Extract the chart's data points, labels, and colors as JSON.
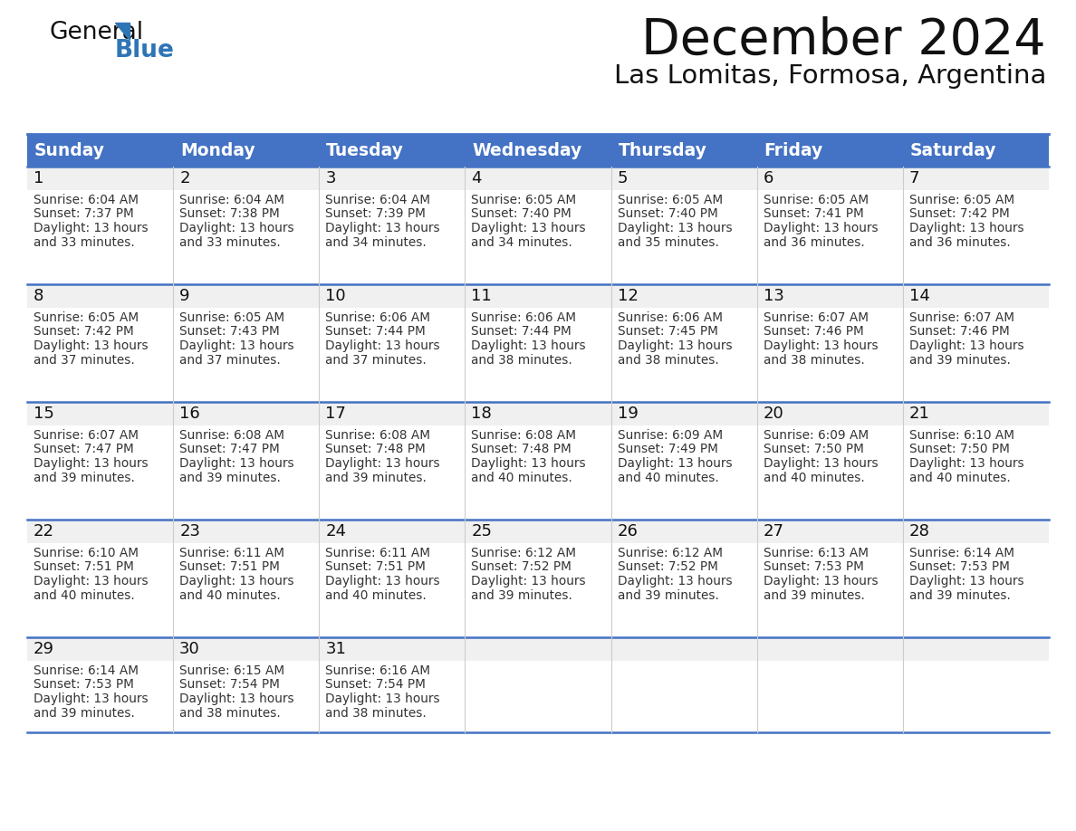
{
  "title": "December 2024",
  "subtitle": "Las Lomitas, Formosa, Argentina",
  "header_color": "#4472C4",
  "header_text_color": "#FFFFFF",
  "days_of_week": [
    "Sunday",
    "Monday",
    "Tuesday",
    "Wednesday",
    "Thursday",
    "Friday",
    "Saturday"
  ],
  "bg_color": "#FFFFFF",
  "border_color": "#4472C4",
  "day_num_bg": "#EFEFEF",
  "text_color": "#333333",
  "calendar_data": [
    [
      {
        "day": 1,
        "sunrise": "6:04 AM",
        "sunset": "7:37 PM",
        "daylight_hours": 13,
        "daylight_minutes": 33
      },
      {
        "day": 2,
        "sunrise": "6:04 AM",
        "sunset": "7:38 PM",
        "daylight_hours": 13,
        "daylight_minutes": 33
      },
      {
        "day": 3,
        "sunrise": "6:04 AM",
        "sunset": "7:39 PM",
        "daylight_hours": 13,
        "daylight_minutes": 34
      },
      {
        "day": 4,
        "sunrise": "6:05 AM",
        "sunset": "7:40 PM",
        "daylight_hours": 13,
        "daylight_minutes": 34
      },
      {
        "day": 5,
        "sunrise": "6:05 AM",
        "sunset": "7:40 PM",
        "daylight_hours": 13,
        "daylight_minutes": 35
      },
      {
        "day": 6,
        "sunrise": "6:05 AM",
        "sunset": "7:41 PM",
        "daylight_hours": 13,
        "daylight_minutes": 36
      },
      {
        "day": 7,
        "sunrise": "6:05 AM",
        "sunset": "7:42 PM",
        "daylight_hours": 13,
        "daylight_minutes": 36
      }
    ],
    [
      {
        "day": 8,
        "sunrise": "6:05 AM",
        "sunset": "7:42 PM",
        "daylight_hours": 13,
        "daylight_minutes": 37
      },
      {
        "day": 9,
        "sunrise": "6:05 AM",
        "sunset": "7:43 PM",
        "daylight_hours": 13,
        "daylight_minutes": 37
      },
      {
        "day": 10,
        "sunrise": "6:06 AM",
        "sunset": "7:44 PM",
        "daylight_hours": 13,
        "daylight_minutes": 37
      },
      {
        "day": 11,
        "sunrise": "6:06 AM",
        "sunset": "7:44 PM",
        "daylight_hours": 13,
        "daylight_minutes": 38
      },
      {
        "day": 12,
        "sunrise": "6:06 AM",
        "sunset": "7:45 PM",
        "daylight_hours": 13,
        "daylight_minutes": 38
      },
      {
        "day": 13,
        "sunrise": "6:07 AM",
        "sunset": "7:46 PM",
        "daylight_hours": 13,
        "daylight_minutes": 38
      },
      {
        "day": 14,
        "sunrise": "6:07 AM",
        "sunset": "7:46 PM",
        "daylight_hours": 13,
        "daylight_minutes": 39
      }
    ],
    [
      {
        "day": 15,
        "sunrise": "6:07 AM",
        "sunset": "7:47 PM",
        "daylight_hours": 13,
        "daylight_minutes": 39
      },
      {
        "day": 16,
        "sunrise": "6:08 AM",
        "sunset": "7:47 PM",
        "daylight_hours": 13,
        "daylight_minutes": 39
      },
      {
        "day": 17,
        "sunrise": "6:08 AM",
        "sunset": "7:48 PM",
        "daylight_hours": 13,
        "daylight_minutes": 39
      },
      {
        "day": 18,
        "sunrise": "6:08 AM",
        "sunset": "7:48 PM",
        "daylight_hours": 13,
        "daylight_minutes": 40
      },
      {
        "day": 19,
        "sunrise": "6:09 AM",
        "sunset": "7:49 PM",
        "daylight_hours": 13,
        "daylight_minutes": 40
      },
      {
        "day": 20,
        "sunrise": "6:09 AM",
        "sunset": "7:50 PM",
        "daylight_hours": 13,
        "daylight_minutes": 40
      },
      {
        "day": 21,
        "sunrise": "6:10 AM",
        "sunset": "7:50 PM",
        "daylight_hours": 13,
        "daylight_minutes": 40
      }
    ],
    [
      {
        "day": 22,
        "sunrise": "6:10 AM",
        "sunset": "7:51 PM",
        "daylight_hours": 13,
        "daylight_minutes": 40
      },
      {
        "day": 23,
        "sunrise": "6:11 AM",
        "sunset": "7:51 PM",
        "daylight_hours": 13,
        "daylight_minutes": 40
      },
      {
        "day": 24,
        "sunrise": "6:11 AM",
        "sunset": "7:51 PM",
        "daylight_hours": 13,
        "daylight_minutes": 40
      },
      {
        "day": 25,
        "sunrise": "6:12 AM",
        "sunset": "7:52 PM",
        "daylight_hours": 13,
        "daylight_minutes": 39
      },
      {
        "day": 26,
        "sunrise": "6:12 AM",
        "sunset": "7:52 PM",
        "daylight_hours": 13,
        "daylight_minutes": 39
      },
      {
        "day": 27,
        "sunrise": "6:13 AM",
        "sunset": "7:53 PM",
        "daylight_hours": 13,
        "daylight_minutes": 39
      },
      {
        "day": 28,
        "sunrise": "6:14 AM",
        "sunset": "7:53 PM",
        "daylight_hours": 13,
        "daylight_minutes": 39
      }
    ],
    [
      {
        "day": 29,
        "sunrise": "6:14 AM",
        "sunset": "7:53 PM",
        "daylight_hours": 13,
        "daylight_minutes": 39
      },
      {
        "day": 30,
        "sunrise": "6:15 AM",
        "sunset": "7:54 PM",
        "daylight_hours": 13,
        "daylight_minutes": 38
      },
      {
        "day": 31,
        "sunrise": "6:16 AM",
        "sunset": "7:54 PM",
        "daylight_hours": 13,
        "daylight_minutes": 38
      },
      null,
      null,
      null,
      null
    ]
  ]
}
